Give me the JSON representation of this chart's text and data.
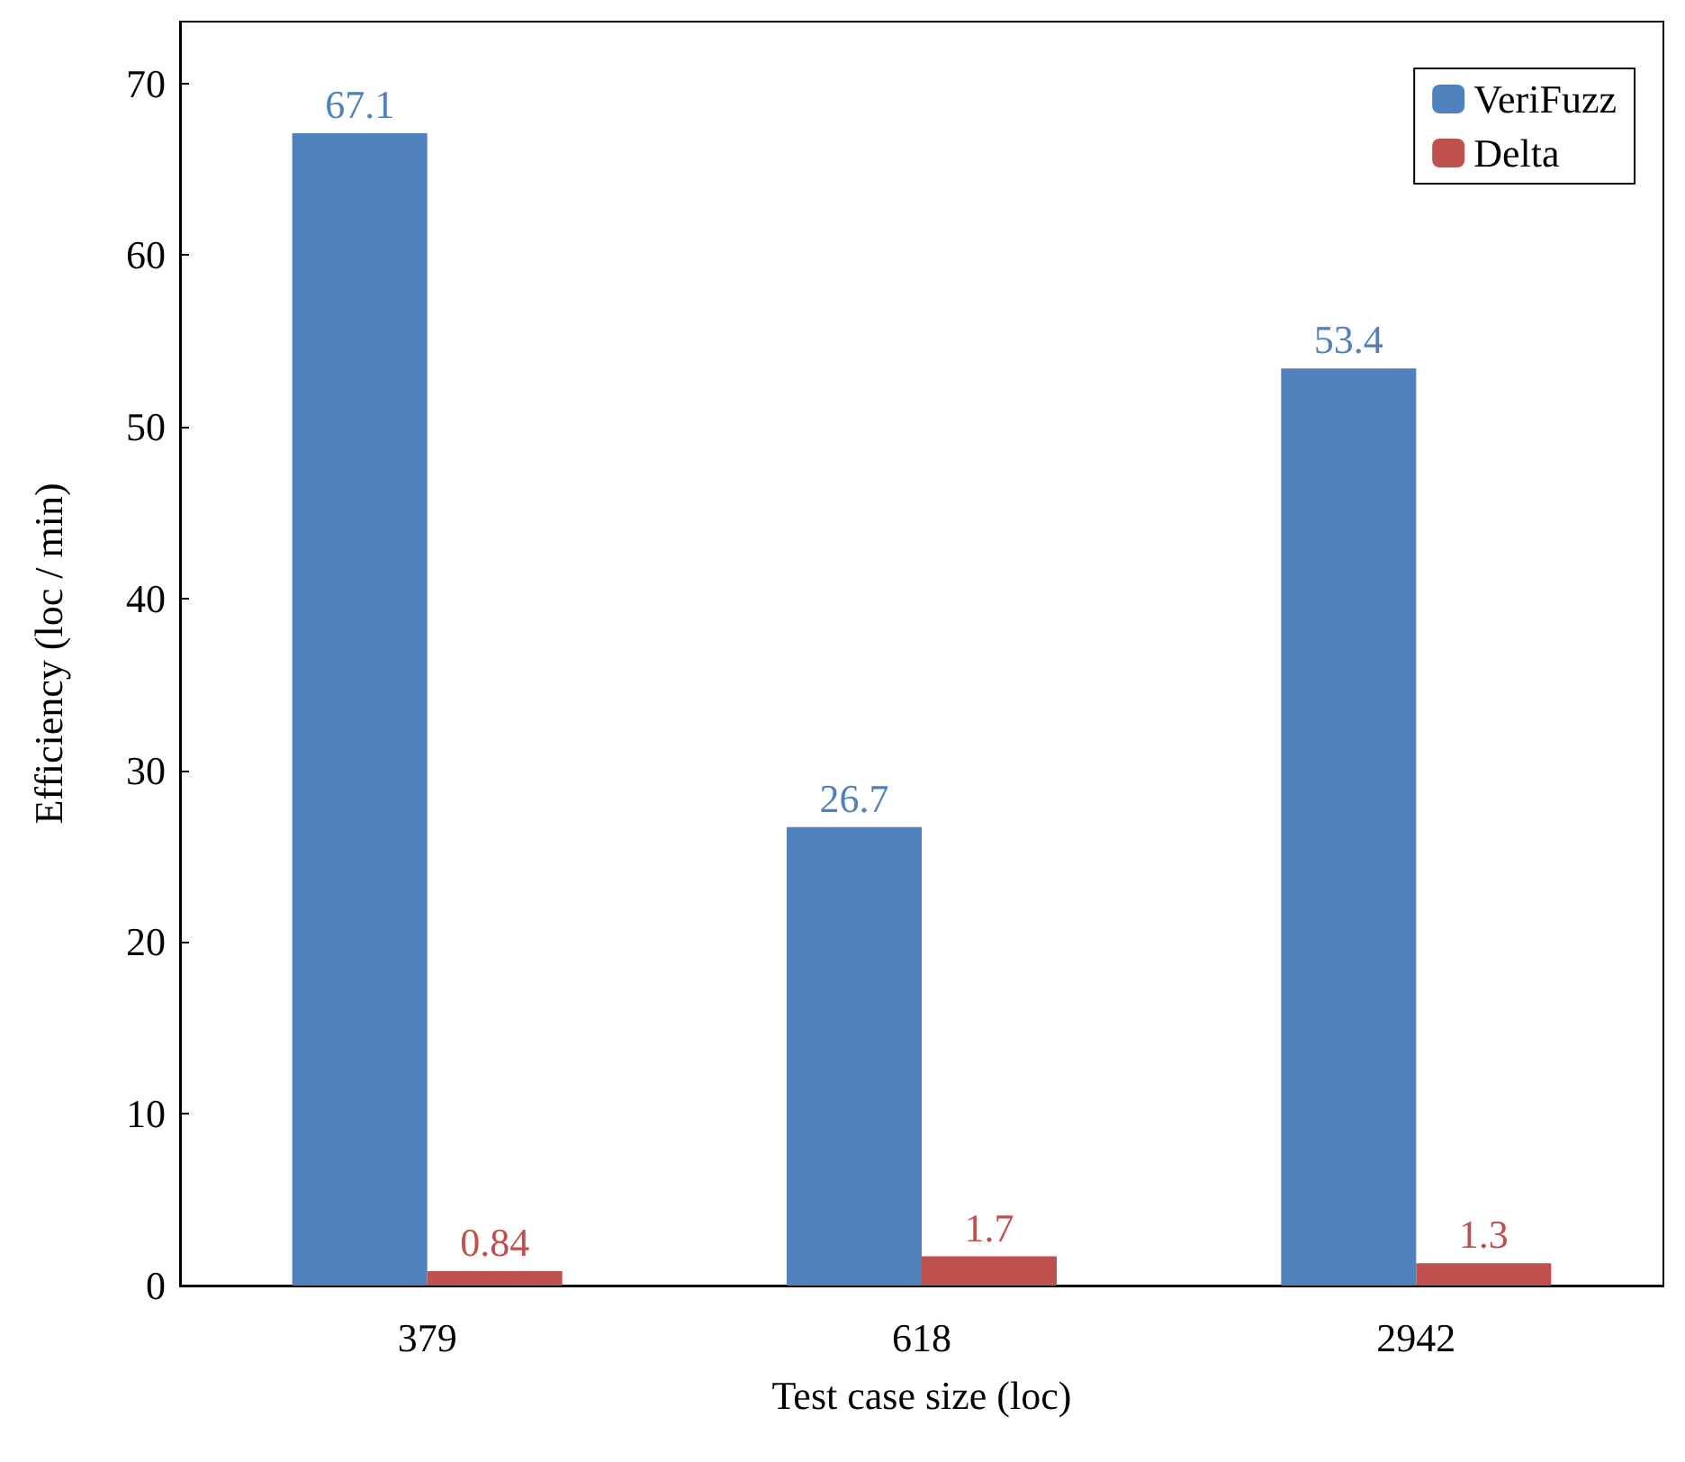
{
  "chart_data": {
    "type": "bar",
    "xlabel": "Test case size (loc)",
    "ylabel": "Efficiency (loc / min)",
    "categories": [
      "379",
      "618",
      "2942"
    ],
    "series": [
      {
        "name": "VeriFuzz",
        "color": "#4f81bd",
        "values": [
          67.1,
          26.7,
          53.4
        ]
      },
      {
        "name": "Delta",
        "color": "#c0504d",
        "values": [
          0.84,
          1.7,
          1.3
        ]
      }
    ],
    "ylim": [
      0,
      73.6
    ],
    "yticks": [
      0,
      10,
      20,
      30,
      40,
      50,
      60,
      70
    ],
    "data_labels": true,
    "legend": "top right",
    "grid": false
  }
}
